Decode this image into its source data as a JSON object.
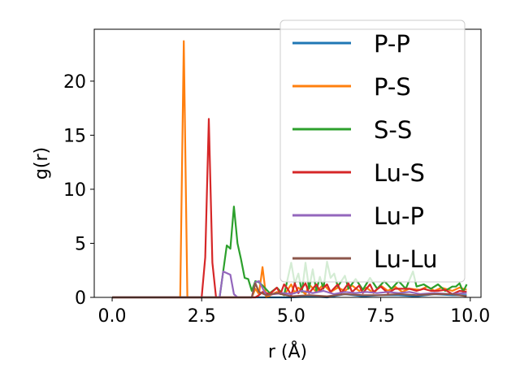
{
  "chart_data": {
    "type": "line",
    "xlabel": "r (Å)",
    "ylabel": "g(r)",
    "xlim": [
      -0.5,
      10.3
    ],
    "ylim": [
      0,
      24.8
    ],
    "xticks": [
      "0.0",
      "2.5",
      "5.0",
      "7.5",
      "10.0"
    ],
    "xtick_values": [
      0,
      2.5,
      5,
      7.5,
      10
    ],
    "yticks": [
      "0",
      "5",
      "10",
      "15",
      "20"
    ],
    "ytick_values": [
      0,
      5,
      10,
      15,
      20
    ],
    "grid": false,
    "legend_position": "top-right",
    "series": [
      {
        "name": "P-P",
        "color": "#1f77b4",
        "points": [
          [
            0.0,
            0
          ],
          [
            3.0,
            0
          ],
          [
            4.0,
            0
          ],
          [
            4.5,
            0
          ],
          [
            5.0,
            0
          ],
          [
            5.6,
            0.1
          ],
          [
            6.0,
            0
          ],
          [
            6.5,
            0.3
          ],
          [
            7.0,
            0.1
          ],
          [
            7.5,
            0.2
          ],
          [
            8.0,
            0.2
          ],
          [
            8.5,
            0.1
          ],
          [
            9.0,
            0.3
          ],
          [
            9.5,
            0.2
          ],
          [
            9.9,
            0.2
          ]
        ]
      },
      {
        "name": "P-S",
        "color": "#ff7f0e",
        "points": [
          [
            0.0,
            0
          ],
          [
            1.9,
            0
          ],
          [
            2.0,
            23.7
          ],
          [
            2.1,
            0
          ],
          [
            3.9,
            0
          ],
          [
            4.0,
            0.8
          ],
          [
            4.1,
            0.3
          ],
          [
            4.2,
            2.8
          ],
          [
            4.3,
            0
          ],
          [
            4.6,
            0.5
          ],
          [
            4.8,
            0.2
          ],
          [
            5.0,
            1.2
          ],
          [
            5.1,
            0.4
          ],
          [
            5.2,
            0.9
          ],
          [
            5.4,
            0.3
          ],
          [
            5.5,
            1.2
          ],
          [
            5.7,
            0.5
          ],
          [
            5.9,
            1.2
          ],
          [
            6.1,
            0.5
          ],
          [
            6.3,
            0.9
          ],
          [
            6.5,
            0.6
          ],
          [
            6.7,
            1.1
          ],
          [
            6.9,
            0.6
          ],
          [
            7.1,
            0.9
          ],
          [
            7.3,
            0.4
          ],
          [
            7.5,
            1.1
          ],
          [
            7.7,
            0.6
          ],
          [
            7.9,
            1.0
          ],
          [
            8.1,
            0.5
          ],
          [
            8.3,
            0.8
          ],
          [
            8.6,
            0.7
          ],
          [
            8.8,
            1.0
          ],
          [
            9.0,
            0.6
          ],
          [
            9.2,
            0.9
          ],
          [
            9.5,
            0.6
          ],
          [
            9.7,
            0.9
          ],
          [
            9.9,
            0.7
          ]
        ]
      },
      {
        "name": "S-S",
        "color": "#2ca02c",
        "points": [
          [
            0.0,
            0
          ],
          [
            3.0,
            0
          ],
          [
            3.2,
            4.8
          ],
          [
            3.3,
            4.5
          ],
          [
            3.4,
            8.4
          ],
          [
            3.5,
            5.0
          ],
          [
            3.6,
            3.5
          ],
          [
            3.7,
            1.8
          ],
          [
            3.8,
            1.7
          ],
          [
            3.9,
            0.6
          ],
          [
            4.0,
            1.5
          ],
          [
            4.1,
            1.4
          ],
          [
            4.2,
            1.1
          ],
          [
            4.4,
            0.4
          ],
          [
            4.6,
            0.9
          ],
          [
            4.8,
            0.2
          ],
          [
            5.0,
            3.2
          ],
          [
            5.1,
            1.3
          ],
          [
            5.2,
            2.2
          ],
          [
            5.3,
            0.5
          ],
          [
            5.4,
            3.2
          ],
          [
            5.5,
            0.8
          ],
          [
            5.6,
            2.6
          ],
          [
            5.7,
            0.6
          ],
          [
            5.8,
            1.9
          ],
          [
            5.9,
            0.8
          ],
          [
            6.0,
            3.3
          ],
          [
            6.1,
            1.8
          ],
          [
            6.2,
            2.2
          ],
          [
            6.3,
            1.0
          ],
          [
            6.5,
            2.0
          ],
          [
            6.6,
            0.8
          ],
          [
            6.8,
            1.7
          ],
          [
            7.0,
            0.7
          ],
          [
            7.2,
            1.8
          ],
          [
            7.4,
            0.8
          ],
          [
            7.6,
            1.5
          ],
          [
            7.8,
            0.8
          ],
          [
            8.0,
            1.5
          ],
          [
            8.2,
            0.8
          ],
          [
            8.4,
            2.4
          ],
          [
            8.5,
            1.0
          ],
          [
            8.7,
            1.2
          ],
          [
            8.9,
            0.8
          ],
          [
            9.1,
            1.2
          ],
          [
            9.3,
            0.6
          ],
          [
            9.5,
            1.0
          ],
          [
            9.6,
            1.0
          ],
          [
            9.7,
            1.3
          ],
          [
            9.8,
            0.5
          ],
          [
            9.9,
            1.2
          ]
        ]
      },
      {
        "name": "Lu-S",
        "color": "#d62728",
        "points": [
          [
            0.0,
            0
          ],
          [
            2.5,
            0
          ],
          [
            2.6,
            3.7
          ],
          [
            2.7,
            16.5
          ],
          [
            2.8,
            3.2
          ],
          [
            2.9,
            0
          ],
          [
            4.0,
            0
          ],
          [
            4.1,
            0.2
          ],
          [
            4.2,
            0.5
          ],
          [
            4.4,
            0.3
          ],
          [
            4.6,
            0.9
          ],
          [
            4.7,
            0.3
          ],
          [
            4.8,
            1.2
          ],
          [
            4.9,
            0.8
          ],
          [
            5.0,
            0.2
          ],
          [
            5.1,
            1.3
          ],
          [
            5.2,
            0.4
          ],
          [
            5.4,
            1.3
          ],
          [
            5.5,
            0.4
          ],
          [
            5.7,
            1.2
          ],
          [
            5.8,
            0.6
          ],
          [
            6.0,
            1.2
          ],
          [
            6.1,
            0.5
          ],
          [
            6.3,
            1.2
          ],
          [
            6.4,
            0.4
          ],
          [
            6.6,
            1.3
          ],
          [
            6.7,
            0.5
          ],
          [
            6.9,
            1.1
          ],
          [
            7.0,
            0.4
          ],
          [
            7.2,
            1.2
          ],
          [
            7.3,
            0.5
          ],
          [
            7.5,
            1.0
          ],
          [
            7.7,
            0.4
          ],
          [
            7.9,
            0.8
          ],
          [
            8.3,
            0.8
          ],
          [
            8.5,
            0.6
          ],
          [
            8.7,
            0.8
          ],
          [
            8.9,
            0.6
          ],
          [
            9.1,
            0.6
          ],
          [
            9.3,
            0.7
          ],
          [
            9.5,
            0.3
          ],
          [
            9.7,
            0.6
          ],
          [
            9.9,
            0.5
          ]
        ]
      },
      {
        "name": "Lu-P",
        "color": "#9467bd",
        "points": [
          [
            0.0,
            0
          ],
          [
            3.0,
            0
          ],
          [
            3.1,
            2.4
          ],
          [
            3.3,
            2.1
          ],
          [
            3.4,
            0.3
          ],
          [
            3.5,
            0
          ],
          [
            3.9,
            0
          ],
          [
            4.0,
            1.4
          ],
          [
            4.1,
            1.5
          ],
          [
            4.3,
            0.2
          ],
          [
            4.5,
            0.3
          ],
          [
            4.8,
            0.4
          ],
          [
            5.0,
            0.3
          ],
          [
            5.3,
            0.6
          ],
          [
            5.6,
            0.4
          ],
          [
            5.9,
            0.6
          ],
          [
            6.2,
            0.3
          ],
          [
            6.5,
            0.5
          ],
          [
            6.8,
            0.4
          ],
          [
            7.1,
            0.5
          ],
          [
            7.4,
            0.4
          ],
          [
            7.7,
            0.5
          ],
          [
            8.0,
            0.4
          ],
          [
            8.3,
            0.5
          ],
          [
            8.6,
            0.3
          ],
          [
            9.0,
            0.4
          ],
          [
            9.4,
            0.3
          ],
          [
            9.9,
            0.4
          ]
        ]
      },
      {
        "name": "Lu-Lu",
        "color": "#8c564b",
        "points": [
          [
            0.0,
            0
          ],
          [
            3.9,
            0
          ],
          [
            4.0,
            1.3
          ],
          [
            4.1,
            0.5
          ],
          [
            4.3,
            0.2
          ],
          [
            4.6,
            0.4
          ],
          [
            5.0,
            0.1
          ],
          [
            5.5,
            0.2
          ],
          [
            6.0,
            0.1
          ],
          [
            6.5,
            0.3
          ],
          [
            7.0,
            0.2
          ],
          [
            7.5,
            0.2
          ],
          [
            8.0,
            0.3
          ],
          [
            8.5,
            0.2
          ],
          [
            9.0,
            0.3
          ],
          [
            9.5,
            0.3
          ],
          [
            9.9,
            0.1
          ]
        ]
      }
    ]
  }
}
